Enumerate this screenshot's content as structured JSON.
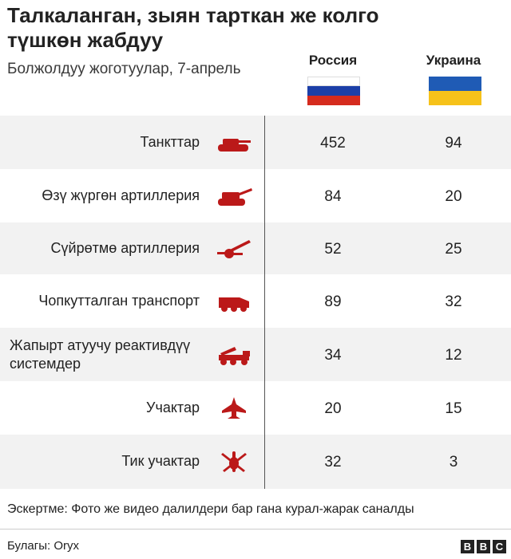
{
  "title": "Талкаланган, зыян тарткан же колго түшкөн жабдуу",
  "subtitle": "Болжолдуу жоготуулар, 7-апрель",
  "columns": {
    "russia": "Россия",
    "ukraine": "Украина"
  },
  "colors": {
    "icon": "#bb1919",
    "row_shade": "#f2f2f2",
    "flag_ru": [
      "#ffffff",
      "#1c3fa8",
      "#d52b1e"
    ],
    "flag_ua": [
      "#1f5bb5",
      "#f6c21a"
    ]
  },
  "chart_data": {
    "type": "table",
    "categories": [
      "Танкттар",
      "Өзү жүргөн артиллерия",
      "Сүйрөтмө артиллерия",
      "Чопкутталган транспорт",
      "Жапырт атуучу реактивдүү системдер",
      "Учактар",
      "Тик учактар"
    ],
    "icons": [
      "tank-icon",
      "self-propelled-artillery-icon",
      "towed-artillery-icon",
      "armoured-vehicle-icon",
      "rocket-launcher-icon",
      "jet-icon",
      "helicopter-icon"
    ],
    "series": [
      {
        "name": "Россия",
        "values": [
          452,
          84,
          52,
          89,
          34,
          20,
          32
        ]
      },
      {
        "name": "Украина",
        "values": [
          94,
          20,
          25,
          32,
          12,
          15,
          3
        ]
      }
    ]
  },
  "note": "Эскертме: Фото же видео далилдери бар гана курал-жарак саналды",
  "source": "Булагы: Oryx",
  "logo": [
    "B",
    "B",
    "C"
  ]
}
